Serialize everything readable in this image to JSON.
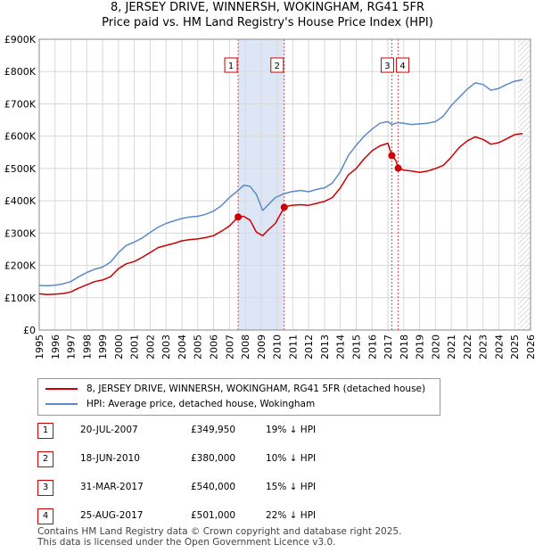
{
  "title": "8, JERSEY DRIVE, WINNERSH, WOKINGHAM, RG41 5FR",
  "subtitle": "Price paid vs. HM Land Registry's House Price Index (HPI)",
  "colors": {
    "property": "#cc0000",
    "hpi": "#5b8ac6",
    "highlight": "#dde6f7",
    "grid": "#d8d8d8",
    "marker": "#cc0000"
  },
  "chart_data": {
    "type": "line",
    "title": "Price paid vs. HM Land Registry's House Price Index (HPI)",
    "xlabel": "",
    "ylabel": "",
    "xlim": [
      1995,
      2026
    ],
    "ylim": [
      0,
      900000
    ],
    "grid": true,
    "legend_position": "below",
    "y_ticks": [
      0,
      100000,
      200000,
      300000,
      400000,
      500000,
      600000,
      700000,
      800000,
      900000
    ],
    "y_tick_labels": [
      "£0",
      "£100K",
      "£200K",
      "£300K",
      "£400K",
      "£500K",
      "£600K",
      "£700K",
      "£800K",
      "£900K"
    ],
    "x_ticks": [
      1995,
      1996,
      1997,
      1998,
      1999,
      2000,
      2001,
      2002,
      2003,
      2004,
      2005,
      2006,
      2007,
      2008,
      2009,
      2010,
      2011,
      2012,
      2013,
      2014,
      2015,
      2016,
      2017,
      2018,
      2019,
      2020,
      2021,
      2022,
      2023,
      2024,
      2025,
      2026
    ],
    "x_tick_labels": [
      "1995",
      "1996",
      "1997",
      "1998",
      "1999",
      "2000",
      "2001",
      "2002",
      "2003",
      "2004",
      "2005",
      "2006",
      "2007",
      "2008",
      "2009",
      "2010",
      "2011",
      "2012",
      "2013",
      "2014",
      "2015",
      "2016",
      "2017",
      "2018",
      "2019",
      "2020",
      "2021",
      "2022",
      "2023",
      "2024",
      "2025",
      "2026"
    ],
    "highlight_period": [
      2007.55,
      2010.46
    ],
    "projection_start": 2025.2,
    "series": [
      {
        "name": "8, JERSEY DRIVE, WINNERSH, WOKINGHAM, RG41 5FR (detached house)",
        "color": "#cc0000",
        "points": [
          [
            1995.0,
            112000
          ],
          [
            1995.5,
            110000
          ],
          [
            1996.0,
            111000
          ],
          [
            1996.5,
            113000
          ],
          [
            1997.0,
            118000
          ],
          [
            1997.5,
            130000
          ],
          [
            1998.0,
            140000
          ],
          [
            1998.5,
            150000
          ],
          [
            1999.0,
            155000
          ],
          [
            1999.5,
            165000
          ],
          [
            2000.0,
            190000
          ],
          [
            2000.5,
            205000
          ],
          [
            2001.0,
            212000
          ],
          [
            2001.5,
            225000
          ],
          [
            2002.0,
            240000
          ],
          [
            2002.5,
            255000
          ],
          [
            2003.0,
            262000
          ],
          [
            2003.5,
            268000
          ],
          [
            2004.0,
            276000
          ],
          [
            2004.5,
            280000
          ],
          [
            2005.0,
            282000
          ],
          [
            2005.5,
            286000
          ],
          [
            2006.0,
            292000
          ],
          [
            2006.5,
            306000
          ],
          [
            2007.0,
            322000
          ],
          [
            2007.55,
            349950
          ],
          [
            2007.9,
            352000
          ],
          [
            2008.3,
            340000
          ],
          [
            2008.7,
            303000
          ],
          [
            2009.1,
            292000
          ],
          [
            2009.5,
            312000
          ],
          [
            2009.9,
            330000
          ],
          [
            2010.46,
            380000
          ],
          [
            2010.9,
            386000
          ],
          [
            2011.5,
            388000
          ],
          [
            2012.0,
            386000
          ],
          [
            2012.5,
            392000
          ],
          [
            2013.0,
            398000
          ],
          [
            2013.5,
            410000
          ],
          [
            2014.0,
            440000
          ],
          [
            2014.5,
            480000
          ],
          [
            2015.0,
            500000
          ],
          [
            2015.5,
            530000
          ],
          [
            2016.0,
            555000
          ],
          [
            2016.5,
            570000
          ],
          [
            2017.0,
            578000
          ],
          [
            2017.25,
            540000
          ],
          [
            2017.5,
            525000
          ],
          [
            2017.65,
            501000
          ],
          [
            2018.0,
            495000
          ],
          [
            2018.5,
            492000
          ],
          [
            2019.0,
            488000
          ],
          [
            2019.5,
            492000
          ],
          [
            2020.0,
            500000
          ],
          [
            2020.5,
            510000
          ],
          [
            2021.0,
            535000
          ],
          [
            2021.5,
            565000
          ],
          [
            2022.0,
            585000
          ],
          [
            2022.5,
            598000
          ],
          [
            2023.0,
            590000
          ],
          [
            2023.5,
            575000
          ],
          [
            2024.0,
            580000
          ],
          [
            2024.5,
            592000
          ],
          [
            2025.0,
            605000
          ],
          [
            2025.5,
            608000
          ]
        ]
      },
      {
        "name": "HPI: Average price, detached house, Wokingham",
        "color": "#5b8ac6",
        "points": [
          [
            1995.0,
            138000
          ],
          [
            1995.5,
            137000
          ],
          [
            1996.0,
            139000
          ],
          [
            1996.5,
            143000
          ],
          [
            1997.0,
            150000
          ],
          [
            1997.5,
            165000
          ],
          [
            1998.0,
            178000
          ],
          [
            1998.5,
            188000
          ],
          [
            1999.0,
            195000
          ],
          [
            1999.5,
            210000
          ],
          [
            2000.0,
            240000
          ],
          [
            2000.5,
            262000
          ],
          [
            2001.0,
            272000
          ],
          [
            2001.5,
            285000
          ],
          [
            2002.0,
            302000
          ],
          [
            2002.5,
            318000
          ],
          [
            2003.0,
            330000
          ],
          [
            2003.5,
            338000
          ],
          [
            2004.0,
            345000
          ],
          [
            2004.5,
            350000
          ],
          [
            2005.0,
            352000
          ],
          [
            2005.5,
            358000
          ],
          [
            2006.0,
            368000
          ],
          [
            2006.5,
            385000
          ],
          [
            2007.0,
            410000
          ],
          [
            2007.55,
            432000
          ],
          [
            2007.9,
            448000
          ],
          [
            2008.3,
            445000
          ],
          [
            2008.7,
            420000
          ],
          [
            2009.1,
            370000
          ],
          [
            2009.5,
            390000
          ],
          [
            2009.9,
            410000
          ],
          [
            2010.46,
            422000
          ],
          [
            2010.9,
            428000
          ],
          [
            2011.5,
            432000
          ],
          [
            2012.0,
            428000
          ],
          [
            2012.5,
            435000
          ],
          [
            2013.0,
            440000
          ],
          [
            2013.5,
            455000
          ],
          [
            2014.0,
            490000
          ],
          [
            2014.5,
            540000
          ],
          [
            2015.0,
            572000
          ],
          [
            2015.5,
            600000
          ],
          [
            2016.0,
            622000
          ],
          [
            2016.5,
            640000
          ],
          [
            2017.0,
            645000
          ],
          [
            2017.25,
            636000
          ],
          [
            2017.5,
            640000
          ],
          [
            2017.65,
            642000
          ],
          [
            2018.0,
            640000
          ],
          [
            2018.5,
            636000
          ],
          [
            2019.0,
            638000
          ],
          [
            2019.5,
            640000
          ],
          [
            2020.0,
            645000
          ],
          [
            2020.5,
            662000
          ],
          [
            2021.0,
            695000
          ],
          [
            2021.5,
            720000
          ],
          [
            2022.0,
            745000
          ],
          [
            2022.5,
            765000
          ],
          [
            2023.0,
            760000
          ],
          [
            2023.5,
            742000
          ],
          [
            2024.0,
            748000
          ],
          [
            2024.5,
            760000
          ],
          [
            2025.0,
            770000
          ],
          [
            2025.5,
            775000
          ]
        ]
      }
    ],
    "sales": [
      {
        "num": "1",
        "date": "20-JUL-2007",
        "year": 2007.55,
        "price": 349950,
        "price_label": "£349,950",
        "delta_label": "19% ↓ HPI"
      },
      {
        "num": "2",
        "date": "18-JUN-2010",
        "year": 2010.46,
        "price": 380000,
        "price_label": "£380,000",
        "delta_label": "10% ↓ HPI"
      },
      {
        "num": "3",
        "date": "31-MAR-2017",
        "year": 2017.25,
        "price": 540000,
        "price_label": "£540,000",
        "delta_label": "15% ↓ HPI"
      },
      {
        "num": "4",
        "date": "25-AUG-2017",
        "year": 2017.65,
        "price": 501000,
        "price_label": "£501,000",
        "delta_label": "22% ↓ HPI"
      }
    ]
  },
  "legend": {
    "property_label": "8, JERSEY DRIVE, WINNERSH, WOKINGHAM, RG41 5FR (detached house)",
    "hpi_label": "HPI: Average price, detached house, Wokingham"
  },
  "footer": {
    "line1": "Contains HM Land Registry data © Crown copyright and database right 2025.",
    "line2": "This data is licensed under the Open Government Licence v3.0."
  }
}
